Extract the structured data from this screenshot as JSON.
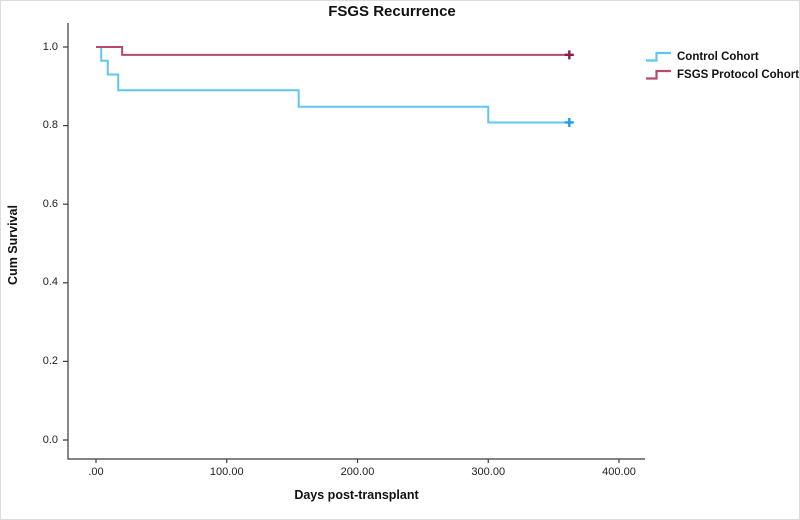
{
  "chart_data": {
    "type": "line",
    "subtype": "kaplan-meier-step",
    "title": "FSGS Recurrence",
    "xlabel": "Days post-transplant",
    "ylabel": "Cum Survival",
    "grid": false,
    "legend_position": "right",
    "xlim": [
      -21,
      420
    ],
    "ylim": [
      -0.05,
      1.06
    ],
    "xtick_labels": [
      ".00",
      "100.00",
      "200.00",
      "300.00",
      "400.00"
    ],
    "xtick_values": [
      0,
      100,
      200,
      300,
      400
    ],
    "ytick_labels": [
      "1.0",
      "0.8",
      "0.6",
      "0.4",
      "0.2",
      "0.0"
    ],
    "ytick_values": [
      1.0,
      0.8,
      0.6,
      0.4,
      0.2,
      0.0
    ],
    "axis_color": "#3a3a3a",
    "series": [
      {
        "name": "Control Cohort",
        "color": "#5fc7ef",
        "censor_color": "#1e9be9",
        "points": [
          [
            0,
            1.0
          ],
          [
            4,
            0.965
          ],
          [
            9,
            0.93
          ],
          [
            17,
            0.89
          ],
          [
            155,
            0.848
          ],
          [
            300,
            0.808
          ]
        ],
        "end_day": 362,
        "censored_at_end": true
      },
      {
        "name": "FSGS Protocol Cohort",
        "color": "#b44a6e",
        "censor_color": "#8e1d44",
        "points": [
          [
            0,
            1.0
          ],
          [
            20,
            0.98
          ]
        ],
        "end_day": 362,
        "censored_at_end": true
      }
    ]
  }
}
